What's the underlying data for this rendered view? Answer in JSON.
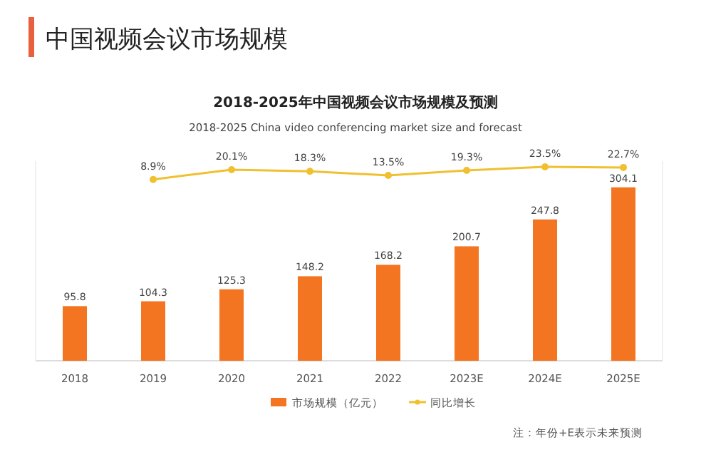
{
  "chart_data": {
    "type": "bar",
    "title": "中国视频会议市场规模",
    "subtitle": "2018-2025年中国视频会议市场规模及预测",
    "annotations": [
      "2018-2025 China video conferencing market size and forecast",
      "注：年份+E表示未来预测"
    ],
    "categories": [
      "2018",
      "2019",
      "2020",
      "2021",
      "2022",
      "2023E",
      "2024E",
      "2025E"
    ],
    "series": [
      {
        "name": "市场规模（亿元）",
        "color": "#f47521",
        "values": [
          95.8,
          104.3,
          125.3,
          148.2,
          168.2,
          200.7,
          247.8,
          304.1
        ]
      },
      {
        "name": "同比增长",
        "type": "line",
        "axis": "y2",
        "color": "#f0c030",
        "marker": "circle",
        "values": [
          null,
          8.9,
          20.1,
          18.3,
          13.5,
          19.3,
          23.5,
          22.7
        ],
        "value_labels": [
          null,
          "8.9%",
          "20.1%",
          "18.3%",
          "13.5%",
          "19.3%",
          "23.5%",
          "22.7%"
        ]
      }
    ],
    "data_labels": true,
    "ylim": [
      0,
      350
    ],
    "y2lim": [
      -200,
      30
    ],
    "tick_labels": "x",
    "grid": false,
    "legend": "bottom"
  }
}
